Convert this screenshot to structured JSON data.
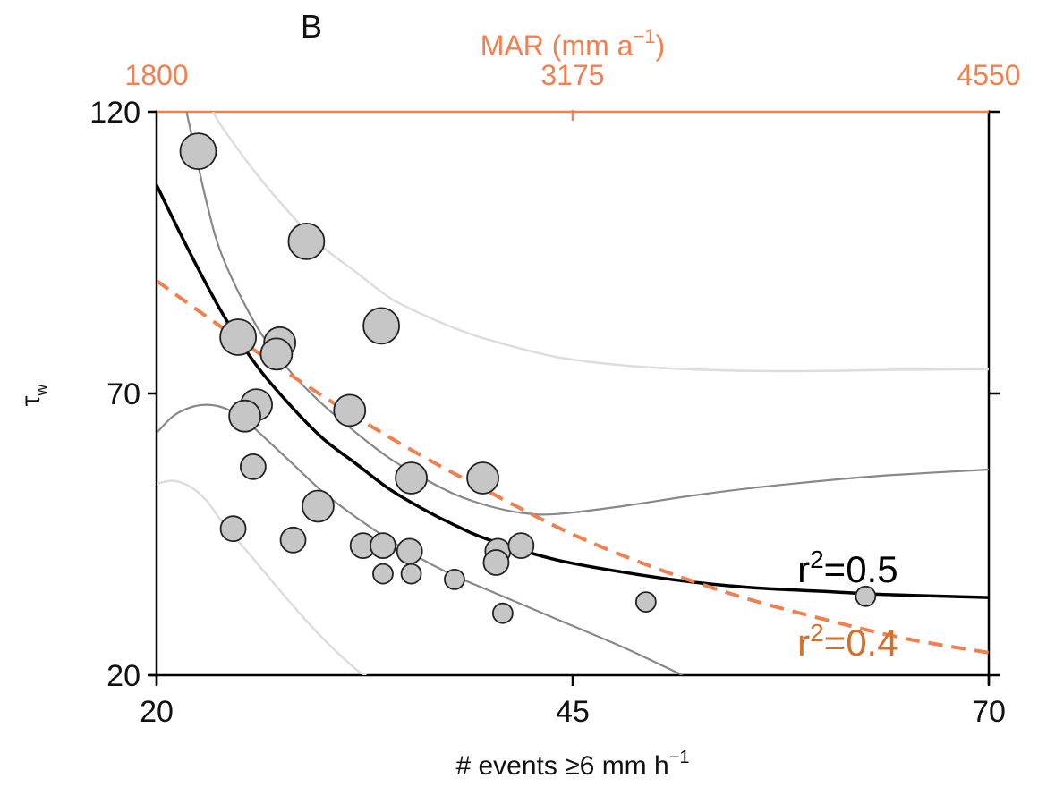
{
  "panel_label": "B",
  "chart_data": {
    "type": "scatter",
    "xlabel": "# events ≥6 mm h",
    "xlabel_superscript": "−1",
    "ylabel": "τ",
    "ylabel_subscript": "w",
    "top_xlabel": "MAR (mm a",
    "top_xlabel_superscript": "−1",
    "top_xlabel_suffix": ")",
    "xlim": [
      20,
      70
    ],
    "ylim": [
      20,
      120
    ],
    "top_xlim": [
      1800,
      4550
    ],
    "x_ticks": [
      "20",
      "45",
      "70"
    ],
    "y_ticks": [
      "20",
      "70",
      "120"
    ],
    "top_x_ticks": [
      "1800",
      "3175",
      "4550"
    ],
    "grid": false,
    "legend": "none",
    "colors": {
      "points_fill": "#c6c6c6",
      "points_stroke": "#222222",
      "fit_black": "#000000",
      "fit_orange": "#f08050",
      "ci_inner": "#888888",
      "ci_outer": "#dddddd",
      "top_axis": "#f08050"
    },
    "points": [
      {
        "x": 22.5,
        "y": 113,
        "size": 3
      },
      {
        "x": 29.0,
        "y": 97,
        "size": 3
      },
      {
        "x": 33.5,
        "y": 82,
        "size": 3
      },
      {
        "x": 24.9,
        "y": 80,
        "size": 3
      },
      {
        "x": 27.4,
        "y": 79,
        "size": 2
      },
      {
        "x": 27.2,
        "y": 77,
        "size": 2
      },
      {
        "x": 31.6,
        "y": 67,
        "size": 2
      },
      {
        "x": 26.0,
        "y": 68,
        "size": 2
      },
      {
        "x": 25.3,
        "y": 66,
        "size": 2
      },
      {
        "x": 25.8,
        "y": 57,
        "size": 1
      },
      {
        "x": 35.3,
        "y": 55,
        "size": 2
      },
      {
        "x": 39.6,
        "y": 55,
        "size": 2
      },
      {
        "x": 29.7,
        "y": 50,
        "size": 2
      },
      {
        "x": 24.6,
        "y": 46,
        "size": 1
      },
      {
        "x": 28.2,
        "y": 44,
        "size": 1
      },
      {
        "x": 32.4,
        "y": 43,
        "size": 1
      },
      {
        "x": 33.6,
        "y": 43,
        "size": 1
      },
      {
        "x": 35.2,
        "y": 42,
        "size": 1
      },
      {
        "x": 40.5,
        "y": 42,
        "size": 1
      },
      {
        "x": 41.9,
        "y": 43,
        "size": 1
      },
      {
        "x": 40.4,
        "y": 40,
        "size": 1
      },
      {
        "x": 33.6,
        "y": 38,
        "size": 0
      },
      {
        "x": 35.3,
        "y": 38,
        "size": 0
      },
      {
        "x": 37.9,
        "y": 37,
        "size": 0
      },
      {
        "x": 49.4,
        "y": 33,
        "size": 0
      },
      {
        "x": 62.6,
        "y": 34,
        "size": 0
      },
      {
        "x": 40.8,
        "y": 31,
        "size": 0
      }
    ],
    "series": [
      {
        "x": [
          20,
          22,
          24,
          26,
          28,
          30,
          32,
          34,
          36,
          38,
          40,
          44,
          48,
          52,
          56,
          60,
          64,
          70
        ],
        "y": [
          107,
          95,
          84,
          75,
          68,
          62,
          57.5,
          53,
          49.5,
          46.5,
          44,
          40.5,
          38.3,
          36.6,
          35.5,
          34.9,
          34.3,
          33.8
        ]
      },
      {
        "x": [
          20,
          25,
          30,
          35,
          40,
          45,
          50,
          55,
          60,
          65,
          70
        ],
        "y": [
          90,
          79.5,
          69.5,
          60.5,
          52.5,
          45,
          39,
          34,
          30,
          26.5,
          24
        ]
      },
      {
        "x": [
          21.8,
          23,
          24,
          26,
          28,
          30,
          32,
          34,
          36,
          38,
          40,
          42,
          44,
          48,
          52,
          56,
          60,
          64,
          70
        ],
        "y": [
          120,
          104,
          94,
          82,
          74,
          68,
          63,
          58.5,
          55,
          52,
          50,
          48.8,
          48.6,
          50,
          51.8,
          53.3,
          54.5,
          55.5,
          56.5
        ]
      },
      {
        "x": [
          20,
          21,
          22,
          23,
          24,
          25,
          26,
          28,
          30,
          32,
          34,
          36,
          38,
          40,
          44,
          48,
          51.6
        ],
        "y": [
          63,
          66,
          67.5,
          68,
          67.5,
          66,
          63.5,
          58,
          52.5,
          48,
          44,
          40.5,
          37.5,
          35,
          30,
          25,
          20
        ]
      },
      {
        "x": [
          23.4,
          24,
          26,
          28,
          30,
          32,
          34,
          36,
          38,
          40,
          44,
          48,
          52,
          56,
          60,
          64,
          70
        ],
        "y": [
          120,
          117,
          109,
          102,
          96,
          91.5,
          87,
          84,
          81.5,
          79.5,
          76.5,
          75,
          74.3,
          74,
          74,
          74.2,
          74.3
        ]
      },
      {
        "x": [
          20,
          21,
          22,
          23,
          24,
          26,
          28,
          30,
          32,
          32.6
        ],
        "y": [
          54,
          54.5,
          53.5,
          51,
          47,
          40,
          33,
          26.5,
          21,
          20
        ]
      }
    ],
    "annotations": [
      {
        "text": "r",
        "superscript": "2",
        "suffix": "=0.5",
        "x": 58.5,
        "y": 36.5
      },
      {
        "text": "r",
        "superscript": "2",
        "suffix": "=0.4",
        "x": 58.5,
        "y": 23.5
      }
    ]
  }
}
